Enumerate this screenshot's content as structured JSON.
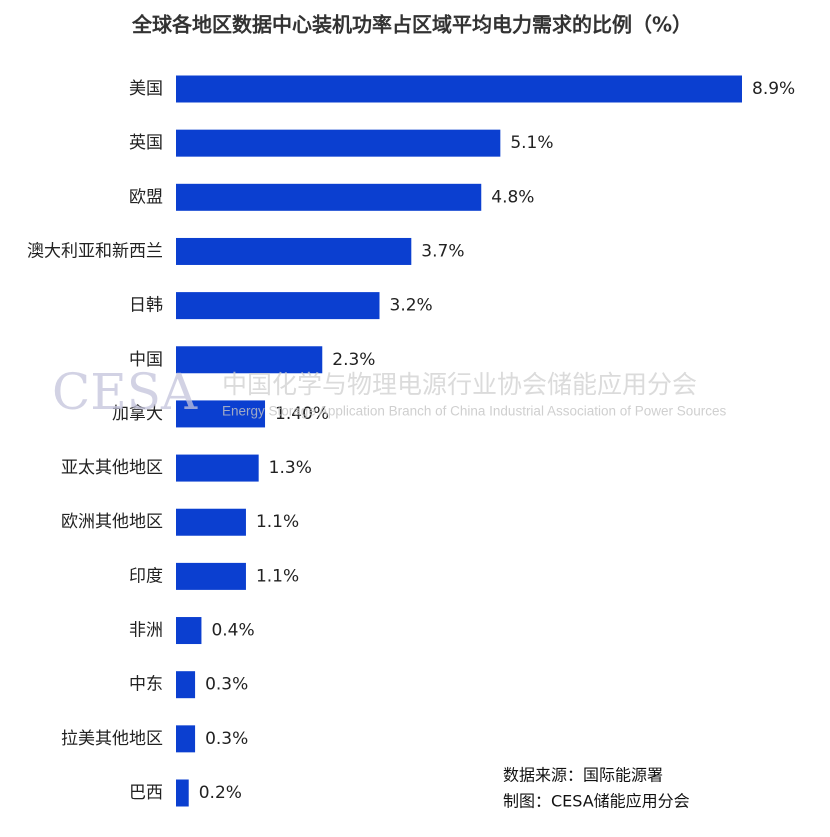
{
  "chart_data": {
    "type": "bar",
    "title": "全球各地区数据中心装机功率占区域平均电力需求的比例（%）",
    "categories": [
      "美国",
      "英国",
      "欧盟",
      "澳大利亚和新西兰",
      "日韩",
      "中国",
      "加拿大",
      "亚太其他地区",
      "欧洲其他地区",
      "印度",
      "非洲",
      "中东",
      "拉美其他地区",
      "巴西"
    ],
    "values": [
      8.9,
      5.1,
      4.8,
      3.7,
      3.2,
      2.3,
      1.4,
      1.3,
      1.1,
      1.1,
      0.4,
      0.3,
      0.3,
      0.2
    ],
    "value_labels": [
      "8.9%",
      "5.1%",
      "4.8%",
      "3.7%",
      "3.2%",
      "2.3%",
      "1.40%",
      "1.3%",
      "1.1%",
      "1.1%",
      "0.4%",
      "0.3%",
      "0.3%",
      "0.2%"
    ],
    "color": "#0b3fd0",
    "watermark": {
      "logo": "CESA",
      "name": "中国化学与物理电源行业协会储能应用分会",
      "name_en": "Energy Storage Application Branch of China Industrial Association of Power Sources"
    },
    "source": [
      "数据来源：国际能源署",
      "制图：CESA储能应用分会"
    ]
  }
}
